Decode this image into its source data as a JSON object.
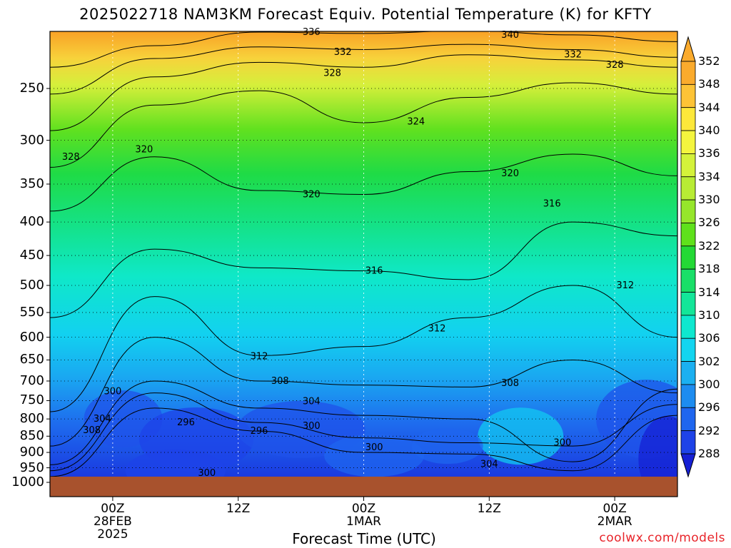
{
  "chart_data": {
    "type": "heatmap",
    "title": "2025022718 NAM3KM Forecast Equiv. Potential Temperature (K) for KFTY",
    "xlabel": "Forecast Time (UTC)",
    "ylabel": "",
    "credit": "coolwx.com/models",
    "y_axis": {
      "scale": "log-pressure",
      "ticks": [
        "250",
        "300",
        "350",
        "400",
        "450",
        "500",
        "550",
        "600",
        "650",
        "700",
        "750",
        "800",
        "850",
        "900",
        "950",
        "1000"
      ],
      "values": [
        250,
        300,
        350,
        400,
        450,
        500,
        550,
        600,
        650,
        700,
        750,
        800,
        850,
        900,
        950,
        1000
      ],
      "range": [
        200,
        1000
      ],
      "inverted": true
    },
    "x_axis": {
      "ticks": [
        {
          "hour": 6,
          "lines": [
            "00Z",
            "28FEB",
            "2025"
          ]
        },
        {
          "hour": 18,
          "lines": [
            "12Z"
          ]
        },
        {
          "hour": 30,
          "lines": [
            "00Z",
            "1MAR"
          ]
        },
        {
          "hour": 42,
          "lines": [
            "12Z"
          ]
        },
        {
          "hour": 54,
          "lines": [
            "00Z",
            "2MAR"
          ]
        }
      ],
      "range": [
        0,
        60
      ],
      "grid": true
    },
    "colorbar": {
      "labels": [
        "352",
        "348",
        "344",
        "340",
        "336",
        "334",
        "330",
        "326",
        "322",
        "318",
        "314",
        "310",
        "306",
        "302",
        "300",
        "296",
        "292",
        "288"
      ],
      "colors": [
        "#fbab2d",
        "#fdc336",
        "#fde83a",
        "#f4f53e",
        "#d4f23a",
        "#b8ec34",
        "#96e62b",
        "#5fe11b",
        "#23d935",
        "#19df68",
        "#13e699",
        "#0ee8cf",
        "#12d5f0",
        "#1bb0f1",
        "#1d8cf0",
        "#1f66ef",
        "#1e43e8",
        "#1620d4"
      ]
    },
    "series": [
      {
        "name": "336",
        "x": [
          0,
          10,
          20,
          30,
          40,
          50,
          60
        ],
        "y": [
          232,
          215,
          205,
          206,
          204,
          207,
          212
        ]
      },
      {
        "name": "332",
        "x": [
          0,
          10,
          20,
          30,
          40,
          50,
          60
        ],
        "y": [
          255,
          225,
          216,
          218,
          214,
          218,
          224
        ]
      },
      {
        "name": "328",
        "x": [
          0,
          10,
          20,
          30,
          40,
          50,
          60
        ],
        "y": [
          290,
          240,
          228,
          232,
          222,
          226,
          232
        ]
      },
      {
        "name": "324",
        "x": [
          0,
          10,
          20,
          30,
          40,
          50,
          60
        ],
        "y": [
          330,
          265,
          252,
          282,
          258,
          245,
          255
        ]
      },
      {
        "name": "320",
        "x": [
          0,
          10,
          20,
          30,
          40,
          50,
          60
        ],
        "y": [
          385,
          318,
          358,
          363,
          335,
          315,
          340
        ]
      },
      {
        "name": "316",
        "x": [
          0,
          10,
          20,
          30,
          40,
          50,
          60
        ],
        "y": [
          560,
          440,
          470,
          475,
          490,
          400,
          420
        ]
      },
      {
        "name": "312",
        "x": [
          0,
          10,
          20,
          30,
          40,
          50,
          60
        ],
        "y": [
          780,
          520,
          640,
          620,
          560,
          500,
          600
        ]
      },
      {
        "name": "308",
        "x": [
          0,
          10,
          20,
          30,
          40,
          50,
          60
        ],
        "y": [
          880,
          600,
          700,
          710,
          715,
          650,
          730
        ]
      },
      {
        "name": "304",
        "x": [
          0,
          10,
          20,
          30,
          40,
          50,
          60
        ],
        "y": [
          940,
          700,
          770,
          790,
          800,
          930,
          720
        ]
      },
      {
        "name": "300",
        "x": [
          0,
          10,
          20,
          30,
          40,
          50,
          60
        ],
        "y": [
          960,
          730,
          810,
          855,
          870,
          880,
          760
        ]
      },
      {
        "name": "296",
        "x": [
          0,
          10,
          20,
          30,
          40,
          50,
          60
        ],
        "y": [
          980,
          770,
          835,
          900,
          905,
          960,
          790
        ]
      }
    ],
    "annotations": [
      {
        "text": "336",
        "hour": 25,
        "p": 205
      },
      {
        "text": "340",
        "hour": 44,
        "p": 207
      },
      {
        "text": "332",
        "hour": 28,
        "p": 220
      },
      {
        "text": "332",
        "hour": 50,
        "p": 222
      },
      {
        "text": "328",
        "hour": 27,
        "p": 237
      },
      {
        "text": "328",
        "hour": 54,
        "p": 230
      },
      {
        "text": "328",
        "hour": 2,
        "p": 318
      },
      {
        "text": "324",
        "hour": 35,
        "p": 281
      },
      {
        "text": "320",
        "hour": 9,
        "p": 310
      },
      {
        "text": "320",
        "hour": 25,
        "p": 363
      },
      {
        "text": "320",
        "hour": 44,
        "p": 337
      },
      {
        "text": "316",
        "hour": 48,
        "p": 375
      },
      {
        "text": "316",
        "hour": 31,
        "p": 475
      },
      {
        "text": "312",
        "hour": 55,
        "p": 500
      },
      {
        "text": "312",
        "hour": 37,
        "p": 582
      },
      {
        "text": "312",
        "hour": 20,
        "p": 642
      },
      {
        "text": "308",
        "hour": 22,
        "p": 700
      },
      {
        "text": "308",
        "hour": 44,
        "p": 705
      },
      {
        "text": "304",
        "hour": 25,
        "p": 752
      },
      {
        "text": "304",
        "hour": 5,
        "p": 800
      },
      {
        "text": "308",
        "hour": 4,
        "p": 832
      },
      {
        "text": "300",
        "hour": 6,
        "p": 726
      },
      {
        "text": "300",
        "hour": 25,
        "p": 820
      },
      {
        "text": "300",
        "hour": 31,
        "p": 884
      },
      {
        "text": "300",
        "hour": 49,
        "p": 870
      },
      {
        "text": "300",
        "hour": 15,
        "p": 968
      },
      {
        "text": "296",
        "hour": 13,
        "p": 810
      },
      {
        "text": "296",
        "hour": 20,
        "p": 835
      },
      {
        "text": "304",
        "hour": 42,
        "p": 938
      }
    ]
  }
}
